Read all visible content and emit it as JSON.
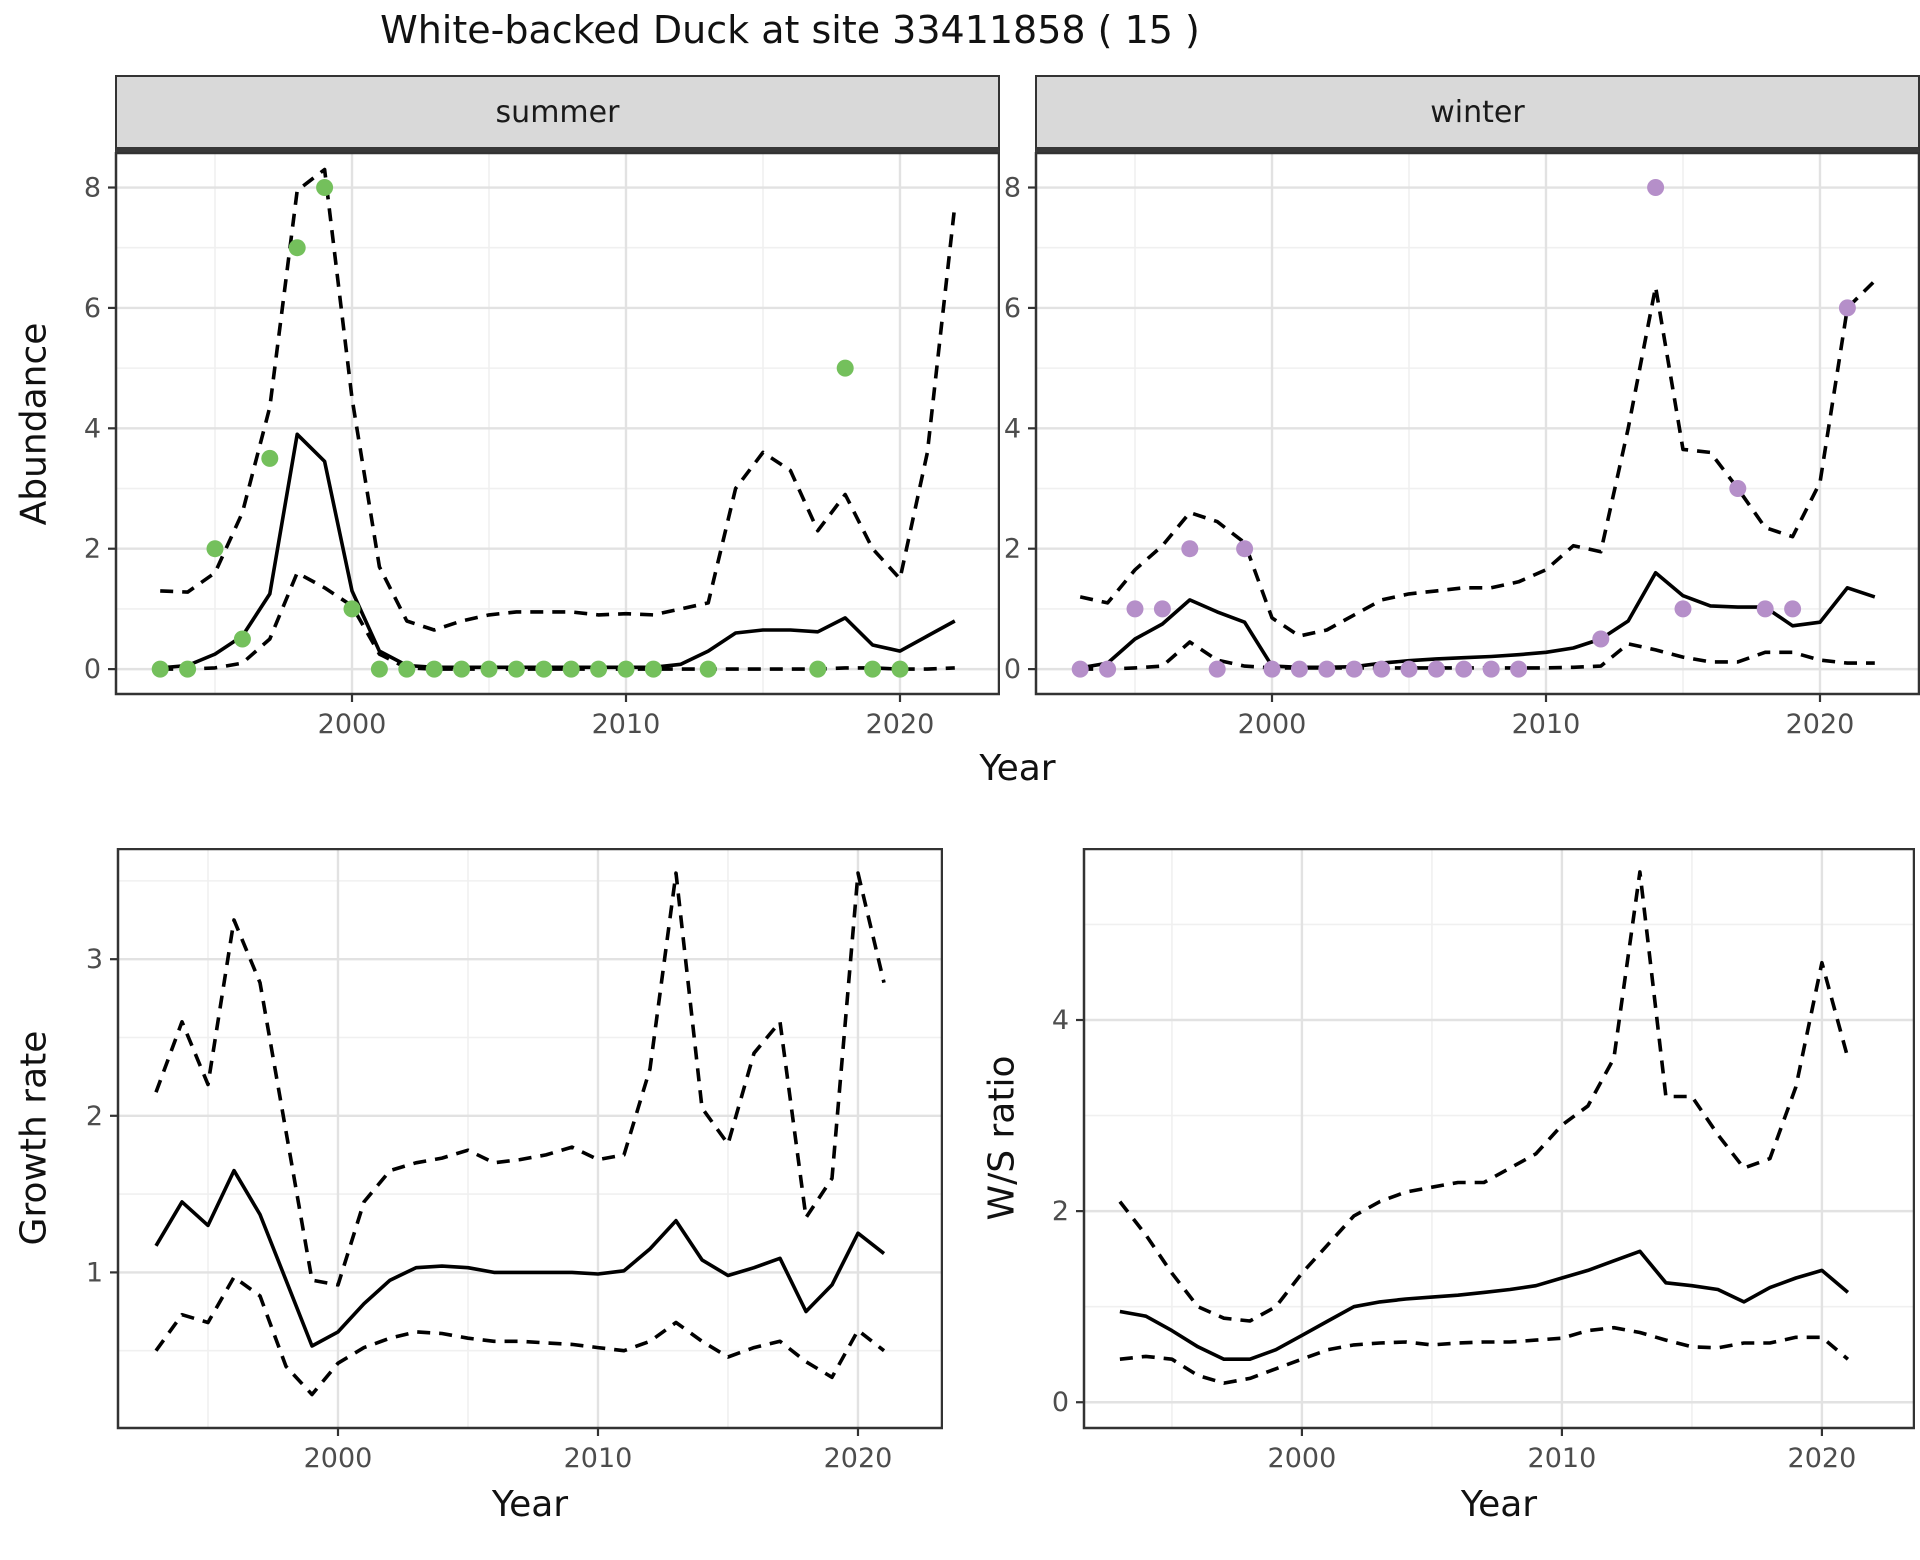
{
  "title": "White-backed Duck at site 33411858 ( 15 )",
  "axis": {
    "x_label": "Year"
  },
  "colors": {
    "point_summer": "#74c05c",
    "point_winter": "#b58fc9",
    "line": "#000000",
    "panel_border": "#333333",
    "grid_major": "#e2e2e2",
    "grid_minor": "#f0f0f0",
    "strip_bg": "#d9d9d9",
    "tick_text": "#4d4d4d"
  },
  "chart_data": [
    {
      "type": "line",
      "facet": "summer",
      "xlabel": "Year",
      "ylabel": "Abundance",
      "xlim": [
        1991.35,
        2023.65
      ],
      "ylim": [
        -0.43,
        8.59
      ],
      "x_ticks": [
        2000,
        2010,
        2020
      ],
      "x_minor": [
        1995,
        2005,
        2015
      ],
      "y_ticks": [
        0,
        2,
        4,
        6,
        8
      ],
      "y_minor": [
        1,
        3,
        5,
        7
      ],
      "years": [
        1993,
        1994,
        1995,
        1996,
        1997,
        1998,
        1999,
        2000,
        2001,
        2002,
        2003,
        2004,
        2005,
        2006,
        2007,
        2008,
        2009,
        2010,
        2011,
        2012,
        2013,
        2014,
        2015,
        2016,
        2017,
        2018,
        2019,
        2020,
        2021,
        2022
      ],
      "series": [
        {
          "name": "lower_ci",
          "style": "dashed",
          "values": [
            0,
            0,
            0.02,
            0.1,
            0.5,
            1.6,
            1.35,
            1.05,
            0.25,
            0.02,
            0,
            0,
            0,
            0,
            0,
            0,
            0,
            0,
            0,
            0,
            0,
            0,
            0,
            0,
            0,
            0.02,
            0.02,
            0,
            0,
            0.02
          ]
        },
        {
          "name": "upper_ci",
          "style": "dashed",
          "values": [
            1.3,
            1.28,
            1.6,
            2.6,
            4.35,
            7.95,
            8.3,
            4.5,
            1.7,
            0.8,
            0.65,
            0.8,
            0.9,
            0.95,
            0.95,
            0.95,
            0.9,
            0.92,
            0.9,
            1.0,
            1.1,
            3.0,
            3.6,
            3.3,
            2.3,
            2.9,
            2.0,
            1.5,
            3.6,
            7.7
          ]
        },
        {
          "name": "fit",
          "style": "solid",
          "values": [
            0.02,
            0.06,
            0.25,
            0.55,
            1.25,
            3.9,
            3.45,
            1.3,
            0.3,
            0.06,
            0.03,
            0.03,
            0.03,
            0.03,
            0.03,
            0.03,
            0.03,
            0.03,
            0.03,
            0.08,
            0.3,
            0.6,
            0.65,
            0.65,
            0.62,
            0.85,
            0.4,
            0.3,
            0.55,
            0.8
          ]
        }
      ],
      "points": {
        "name": "observed",
        "color_key": "point_summer",
        "data": [
          [
            1993,
            0
          ],
          [
            1994,
            0
          ],
          [
            1995,
            2
          ],
          [
            1996,
            0.5
          ],
          [
            1997,
            3.5
          ],
          [
            1998,
            7
          ],
          [
            1999,
            8
          ],
          [
            2000,
            1
          ],
          [
            2001,
            0
          ],
          [
            2002,
            0
          ],
          [
            2003,
            0
          ],
          [
            2004,
            0
          ],
          [
            2005,
            0
          ],
          [
            2006,
            0
          ],
          [
            2007,
            0
          ],
          [
            2008,
            0
          ],
          [
            2009,
            0
          ],
          [
            2010,
            0
          ],
          [
            2011,
            0
          ],
          [
            2013,
            0
          ],
          [
            2017,
            0
          ],
          [
            2018,
            5
          ],
          [
            2019,
            0
          ],
          [
            2020,
            0
          ]
        ]
      }
    },
    {
      "type": "line",
      "facet": "winter",
      "xlabel": "Year",
      "ylabel": "Abundance",
      "xlim": [
        1991.35,
        2023.65
      ],
      "ylim": [
        -0.43,
        8.59
      ],
      "x_ticks": [
        2000,
        2010,
        2020
      ],
      "x_minor": [
        1995,
        2005,
        2015
      ],
      "y_ticks": [
        0,
        2,
        4,
        6,
        8
      ],
      "y_minor": [
        1,
        3,
        5,
        7
      ],
      "years": [
        1993,
        1994,
        1995,
        1996,
        1997,
        1998,
        1999,
        2000,
        2001,
        2002,
        2003,
        2004,
        2005,
        2006,
        2007,
        2008,
        2009,
        2010,
        2011,
        2012,
        2013,
        2014,
        2015,
        2016,
        2017,
        2018,
        2019,
        2020,
        2021,
        2022
      ],
      "series": [
        {
          "name": "lower_ci",
          "style": "dashed",
          "values": [
            0,
            0,
            0.02,
            0.05,
            0.45,
            0.15,
            0.05,
            0.02,
            0.02,
            0.02,
            0.02,
            0.02,
            0.02,
            0.02,
            0.02,
            0.02,
            0.02,
            0.02,
            0.03,
            0.05,
            0.42,
            0.32,
            0.2,
            0.12,
            0.12,
            0.28,
            0.28,
            0.15,
            0.1,
            0.1
          ]
        },
        {
          "name": "upper_ci",
          "style": "dashed",
          "values": [
            1.2,
            1.1,
            1.65,
            2.05,
            2.6,
            2.45,
            2.1,
            0.85,
            0.55,
            0.65,
            0.9,
            1.15,
            1.25,
            1.3,
            1.35,
            1.35,
            1.45,
            1.65,
            2.05,
            1.95,
            4.0,
            6.35,
            3.65,
            3.6,
            3.0,
            2.35,
            2.2,
            3.1,
            6.0,
            6.45
          ]
        },
        {
          "name": "fit",
          "style": "solid",
          "values": [
            0.02,
            0.1,
            0.5,
            0.75,
            1.15,
            0.95,
            0.78,
            0.05,
            0.03,
            0.03,
            0.04,
            0.1,
            0.14,
            0.17,
            0.19,
            0.21,
            0.24,
            0.28,
            0.35,
            0.5,
            0.8,
            1.6,
            1.22,
            1.05,
            1.03,
            1.03,
            0.72,
            0.78,
            1.35,
            1.2
          ]
        }
      ],
      "points": {
        "name": "observed",
        "color_key": "point_winter",
        "data": [
          [
            1993,
            0
          ],
          [
            1994,
            0
          ],
          [
            1995,
            1
          ],
          [
            1996,
            1
          ],
          [
            1997,
            2
          ],
          [
            1998,
            0
          ],
          [
            1999,
            2
          ],
          [
            2000,
            0
          ],
          [
            2001,
            0
          ],
          [
            2002,
            0
          ],
          [
            2003,
            0
          ],
          [
            2004,
            0
          ],
          [
            2005,
            0
          ],
          [
            2006,
            0
          ],
          [
            2007,
            0
          ],
          [
            2008,
            0
          ],
          [
            2009,
            0
          ],
          [
            2012,
            0.5
          ],
          [
            2014,
            8
          ],
          [
            2015,
            1
          ],
          [
            2017,
            3
          ],
          [
            2018,
            1
          ],
          [
            2019,
            1
          ],
          [
            2021,
            6
          ]
        ]
      }
    },
    {
      "type": "line",
      "facet": null,
      "xlabel": "Year",
      "ylabel": "Growth rate",
      "xlim": [
        1991.5,
        2023.27
      ],
      "ylim": [
        0,
        3.71
      ],
      "x_ticks": [
        2000,
        2010,
        2020
      ],
      "x_minor": [
        1995,
        2005,
        2015
      ],
      "y_ticks": [
        1,
        2,
        3
      ],
      "y_minor": [
        0.5,
        1.5,
        2.5,
        3.5
      ],
      "years": [
        1993,
        1994,
        1995,
        1996,
        1997,
        1998,
        1999,
        2000,
        2001,
        2002,
        2003,
        2004,
        2005,
        2006,
        2007,
        2008,
        2009,
        2010,
        2011,
        2012,
        2013,
        2014,
        2015,
        2016,
        2017,
        2018,
        2019,
        2020,
        2021
      ],
      "series": [
        {
          "name": "lower_ci",
          "style": "dashed",
          "values": [
            0.5,
            0.73,
            0.68,
            0.97,
            0.85,
            0.4,
            0.22,
            0.42,
            0.52,
            0.58,
            0.62,
            0.61,
            0.58,
            0.56,
            0.56,
            0.55,
            0.54,
            0.52,
            0.5,
            0.56,
            0.68,
            0.56,
            0.46,
            0.52,
            0.56,
            0.43,
            0.33,
            0.63,
            0.5
          ]
        },
        {
          "name": "upper_ci",
          "style": "dashed",
          "values": [
            2.15,
            2.6,
            2.2,
            3.25,
            2.85,
            1.9,
            0.95,
            0.92,
            1.45,
            1.65,
            1.7,
            1.73,
            1.78,
            1.7,
            1.72,
            1.75,
            1.8,
            1.72,
            1.75,
            2.3,
            3.55,
            2.05,
            1.82,
            2.4,
            2.6,
            1.35,
            1.6,
            3.55,
            2.85
          ]
        },
        {
          "name": "fit",
          "style": "solid",
          "values": [
            1.17,
            1.45,
            1.3,
            1.65,
            1.37,
            0.95,
            0.53,
            0.62,
            0.8,
            0.95,
            1.03,
            1.04,
            1.03,
            1.0,
            1.0,
            1.0,
            1.0,
            0.99,
            1.01,
            1.15,
            1.33,
            1.08,
            0.98,
            1.03,
            1.09,
            0.75,
            0.92,
            1.25,
            1.12
          ]
        }
      ],
      "points": null
    },
    {
      "type": "line",
      "facet": null,
      "xlabel": "Year",
      "ylabel": "W/S ratio",
      "xlim": [
        1991.58,
        2023.58
      ],
      "ylim": [
        -0.28,
        5.8
      ],
      "x_ticks": [
        2000,
        2010,
        2020
      ],
      "x_minor": [
        1995,
        2005,
        2015
      ],
      "y_ticks": [
        0,
        2,
        4
      ],
      "y_minor": [
        1,
        3,
        5
      ],
      "years": [
        1993,
        1994,
        1995,
        1996,
        1997,
        1998,
        1999,
        2000,
        2001,
        2002,
        2003,
        2004,
        2005,
        2006,
        2007,
        2008,
        2009,
        2010,
        2011,
        2012,
        2013,
        2014,
        2015,
        2016,
        2017,
        2018,
        2019,
        2020,
        2021
      ],
      "series": [
        {
          "name": "lower_ci",
          "style": "dashed",
          "values": [
            0.45,
            0.48,
            0.45,
            0.28,
            0.2,
            0.25,
            0.35,
            0.45,
            0.55,
            0.6,
            0.62,
            0.63,
            0.6,
            0.62,
            0.63,
            0.63,
            0.65,
            0.67,
            0.75,
            0.78,
            0.73,
            0.65,
            0.58,
            0.57,
            0.62,
            0.62,
            0.68,
            0.68,
            0.45
          ]
        },
        {
          "name": "upper_ci",
          "style": "dashed",
          "values": [
            2.1,
            1.75,
            1.35,
            1.0,
            0.88,
            0.85,
            1.0,
            1.35,
            1.65,
            1.95,
            2.1,
            2.2,
            2.25,
            2.3,
            2.3,
            2.45,
            2.6,
            2.9,
            3.1,
            3.6,
            5.55,
            3.2,
            3.2,
            2.8,
            2.45,
            2.55,
            3.3,
            4.6,
            3.6
          ]
        },
        {
          "name": "fit",
          "style": "solid",
          "values": [
            0.95,
            0.9,
            0.75,
            0.58,
            0.45,
            0.45,
            0.55,
            0.7,
            0.85,
            1.0,
            1.05,
            1.08,
            1.1,
            1.12,
            1.15,
            1.18,
            1.22,
            1.3,
            1.38,
            1.48,
            1.58,
            1.25,
            1.22,
            1.18,
            1.05,
            1.2,
            1.3,
            1.38,
            1.15
          ]
        }
      ],
      "points": null
    }
  ]
}
